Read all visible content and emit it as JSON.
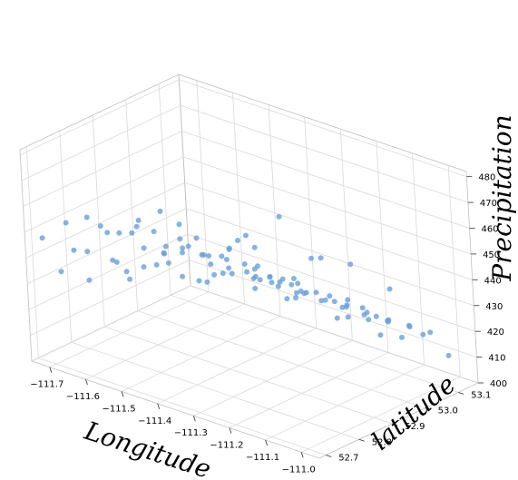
{
  "chart_data": {
    "type": "scatter",
    "title": "",
    "xlabel": "Longitude",
    "ylabel": "latitude",
    "zlabel": "Precipitation",
    "xlim": [
      -111.75,
      -110.95
    ],
    "ylim": [
      52.68,
      53.16
    ],
    "zlim": [
      400,
      482
    ],
    "x_ticks": [
      "−111.7",
      "−111.6",
      "−111.5",
      "−111.4",
      "−111.3",
      "−111.2",
      "−111.1",
      "−111.0"
    ],
    "y_ticks": [
      "52.7",
      "52.8",
      "52.9",
      "53.0",
      "53.1"
    ],
    "z_ticks": [
      "400",
      "410",
      "420",
      "430",
      "440",
      "450",
      "460",
      "470",
      "480"
    ],
    "grid": true,
    "marker_color": "#6a9fd8",
    "points": [
      [
        -111.71,
        52.74,
        433
      ],
      [
        -111.69,
        52.76,
        441
      ],
      [
        -111.68,
        52.79,
        428
      ],
      [
        -111.7,
        52.81,
        437
      ],
      [
        -111.66,
        52.83,
        445
      ],
      [
        -111.64,
        52.86,
        429
      ],
      [
        -111.63,
        52.78,
        452
      ],
      [
        -111.62,
        52.8,
        438
      ],
      [
        -111.61,
        52.88,
        431
      ],
      [
        -111.6,
        52.84,
        447
      ],
      [
        -111.58,
        52.91,
        436
      ],
      [
        -111.57,
        52.76,
        442
      ],
      [
        -111.56,
        52.82,
        455
      ],
      [
        -111.55,
        52.93,
        427
      ],
      [
        -111.54,
        52.87,
        440
      ],
      [
        -111.53,
        52.97,
        434
      ],
      [
        -111.52,
        52.79,
        448
      ],
      [
        -111.51,
        52.85,
        439
      ],
      [
        -111.5,
        52.95,
        426
      ],
      [
        -111.49,
        52.89,
        444
      ],
      [
        -111.48,
        53.0,
        437
      ],
      [
        -111.47,
        52.77,
        458
      ],
      [
        -111.46,
        52.84,
        446
      ],
      [
        -111.45,
        52.92,
        433
      ],
      [
        -111.44,
        53.03,
        429
      ],
      [
        -111.43,
        52.81,
        451
      ],
      [
        -111.42,
        52.88,
        441
      ],
      [
        -111.41,
        52.97,
        436
      ],
      [
        -111.4,
        53.06,
        424
      ],
      [
        -111.39,
        52.83,
        449
      ],
      [
        -111.38,
        52.9,
        438
      ],
      [
        -111.37,
        53.0,
        431
      ],
      [
        -111.36,
        52.78,
        460
      ],
      [
        -111.35,
        52.86,
        444
      ],
      [
        -111.34,
        52.94,
        435
      ],
      [
        -111.33,
        53.04,
        428
      ],
      [
        -111.32,
        52.81,
        453
      ],
      [
        -111.31,
        52.89,
        440
      ],
      [
        -111.3,
        52.99,
        432
      ],
      [
        -111.29,
        53.09,
        422
      ],
      [
        -111.28,
        52.84,
        447
      ],
      [
        -111.27,
        52.92,
        437
      ],
      [
        -111.26,
        53.02,
        429
      ],
      [
        -111.25,
        52.76,
        462
      ],
      [
        -111.24,
        52.87,
        443
      ],
      [
        -111.23,
        52.96,
        434
      ],
      [
        -111.22,
        53.07,
        425
      ],
      [
        -111.21,
        52.8,
        455
      ],
      [
        -111.2,
        52.9,
        439
      ],
      [
        -111.19,
        53.0,
        430
      ],
      [
        -111.18,
        53.11,
        418
      ],
      [
        -111.17,
        52.83,
        450
      ],
      [
        -111.16,
        52.93,
        436
      ],
      [
        -111.15,
        53.04,
        427
      ],
      [
        -111.14,
        52.86,
        444
      ],
      [
        -111.13,
        52.96,
        433
      ],
      [
        -111.12,
        53.08,
        421
      ],
      [
        -111.11,
        52.89,
        441
      ],
      [
        -111.1,
        53.0,
        430
      ],
      [
        -111.09,
        52.78,
        457
      ],
      [
        -111.08,
        52.92,
        438
      ],
      [
        -111.07,
        53.03,
        426
      ],
      [
        -111.06,
        52.95,
        434
      ],
      [
        -111.05,
        53.07,
        423
      ],
      [
        -111.04,
        52.88,
        443
      ],
      [
        -111.03,
        52.99,
        431
      ],
      [
        -111.02,
        53.1,
        420
      ],
      [
        -111.01,
        52.91,
        437
      ],
      [
        -111.0,
        53.02,
        428
      ],
      [
        -111.69,
        52.92,
        420
      ],
      [
        -111.65,
        52.96,
        425
      ],
      [
        -111.59,
        53.02,
        418
      ],
      [
        -111.55,
        53.05,
        421
      ],
      [
        -111.5,
        53.09,
        415
      ],
      [
        -111.44,
        53.12,
        412
      ],
      [
        -111.38,
        53.1,
        419
      ],
      [
        -111.31,
        53.13,
        410
      ],
      [
        -111.26,
        53.11,
        414
      ],
      [
        -111.2,
        53.14,
        408
      ],
      [
        -111.13,
        53.13,
        411
      ],
      [
        -111.06,
        53.12,
        416
      ],
      [
        -111.01,
        53.14,
        409
      ],
      [
        -111.72,
        52.7,
        448
      ],
      [
        -111.67,
        52.72,
        455
      ],
      [
        -111.6,
        52.71,
        461
      ],
      [
        -111.53,
        52.73,
        457
      ],
      [
        -111.46,
        52.71,
        464
      ],
      [
        -111.39,
        52.72,
        459
      ],
      [
        -111.33,
        52.7,
        466
      ],
      [
        -111.27,
        52.72,
        461
      ],
      [
        -111.21,
        52.71,
        463
      ],
      [
        -111.15,
        52.73,
        458
      ],
      [
        -111.09,
        52.71,
        462
      ],
      [
        -111.03,
        52.72,
        456
      ],
      [
        -111.36,
        52.95,
        446
      ],
      [
        -111.28,
        53.06,
        439
      ],
      [
        -111.19,
        52.85,
        472
      ],
      [
        -111.42,
        52.74,
        470
      ],
      [
        -111.58,
        52.96,
        444
      ],
      [
        -111.12,
        52.98,
        449
      ],
      [
        -111.47,
        53.04,
        440
      ],
      [
        -111.24,
        52.99,
        445
      ],
      [
        -111.33,
        52.87,
        455
      ],
      [
        -111.08,
        53.05,
        437
      ]
    ]
  }
}
